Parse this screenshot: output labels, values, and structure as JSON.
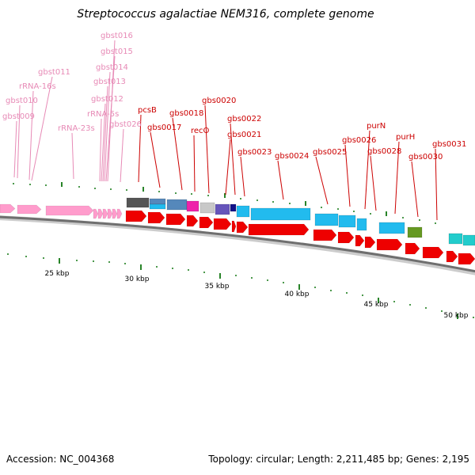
{
  "title": "Streptococcus agalactiae NEM316, complete genome",
  "footer": {
    "accession": "Accession: NC_004368",
    "summary": "Topology: circular; Length: 2,211,485 bp; Genes: 2,195"
  },
  "scale_labels": [
    "25 kbp",
    "30 kbp",
    "35 kbp",
    "40 kbp",
    "45 kbp",
    "50 kbp"
  ],
  "colors": {
    "cds": "#ee0000",
    "rna": "#ff9ccc",
    "backbone": "#777777",
    "tick": "#117711",
    "gene_label": "#cc0000",
    "rna_label": "#e78ab6",
    "cog_cyan": "#22bbee",
    "cog_blue": "#5588bb",
    "cog_magenta": "#ee22aa",
    "cog_grey": "#c8c8c8",
    "cog_purple": "#6655bb",
    "cog_navy": "#111188",
    "cog_olive": "#669922",
    "cog_dark": "#555555",
    "cog_teal": "#22cccc"
  },
  "gene_labels": [
    "pcsB",
    "gbs0017",
    "gbs0018",
    "recO",
    "gbs0020",
    "gbs0021",
    "gbs0022",
    "gbs0023",
    "gbs0024",
    "gbs0025",
    "gbs0026",
    "purN",
    "gbs0028",
    "purH",
    "gbs0030",
    "gbs0031"
  ],
  "rna_labels": [
    "gbst016",
    "gbst015",
    "gbst014",
    "gbst013",
    "gbst012",
    "gbst011",
    "rRNA-16s",
    "gbst010",
    "gbst009",
    "rRNA-5s",
    "rRNA-23s",
    "gbst026"
  ]
}
